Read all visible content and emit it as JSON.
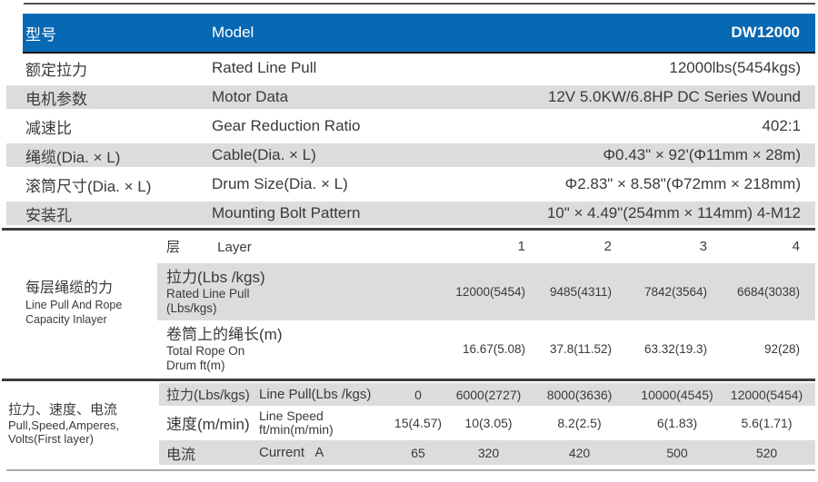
{
  "colors": {
    "accent_blue": "#0768b4",
    "stripe_gray": "#dcdcdc",
    "text": "#3a3a3a"
  },
  "header": {
    "cn": "型号",
    "en": "Model",
    "model": "DW12000"
  },
  "spec_rows": [
    {
      "cn": "额定拉力",
      "en": "Rated Line Pull",
      "value": "12000lbs(5454kgs)"
    },
    {
      "cn": "电机参数",
      "en": "Motor Data",
      "value": "12V 5.0KW/6.8HP DC Series Wound"
    },
    {
      "cn": "减速比",
      "en": "Gear Reduction Ratio",
      "value": "402:1"
    },
    {
      "cn": "绳缆(Dia. × L)",
      "en": "Cable(Dia. × L)",
      "value": "Φ0.43\" × 92'(Φ11mm × 28m)"
    },
    {
      "cn": "滚筒尺寸(Dia. × L)",
      "en": "Drum Size(Dia. × L)",
      "value": "Φ2.83\" × 8.58\"(Φ72mm × 218mm)"
    },
    {
      "cn": "安装孔",
      "en": "Mounting Bolt Pattern",
      "value": "10\" × 4.49\"(254mm × 114mm) 4-M12"
    }
  ],
  "layer_section": {
    "group_cn": "每层绳缆的力",
    "group_en1": "Line Pull And Rope",
    "group_en2": "Capacity Inlayer",
    "layer_cn": "层",
    "layer_en": "Layer",
    "layers": [
      "1",
      "2",
      "3",
      "4"
    ],
    "pull": {
      "cn": "拉力(Lbs /kgs)",
      "en1": "Rated Line Pull",
      "en2": "(Lbs/kgs)",
      "values": [
        "12000(5454)",
        "9485(4311)",
        "7842(3564)",
        "6684(3038)"
      ]
    },
    "rope": {
      "cn": "卷筒上的绳长(m)",
      "en1": "Total Rope On",
      "en2": "Drum ft(m)",
      "values": [
        "16.67(5.08)",
        "37.8(11.52)",
        "63.32(19.3)",
        "92(28)"
      ]
    }
  },
  "perf_section": {
    "group_cn": "拉力、速度、电流",
    "group_en1": "Pull,Speed,Amperes,",
    "group_en2": "Volts(First layer)",
    "pull": {
      "cn": "拉力(Lbs/kgs)",
      "en": "Line Pull(Lbs /kgs)",
      "values": [
        "0",
        "6000(2727)",
        "8000(3636)",
        "10000(4545)",
        "12000(5454)"
      ]
    },
    "speed": {
      "cn": "速度(m/min)",
      "en1": "Line Speed",
      "en2": "ft/min(m/min)",
      "values": [
        "15(4.57)",
        "10(3.05)",
        "8.2(2.5)",
        "6(1.83)",
        "5.6(1.71)"
      ]
    },
    "amps": {
      "cn": "电流",
      "en": "Current A",
      "values": [
        "65",
        "320",
        "420",
        "500",
        "520"
      ]
    }
  }
}
